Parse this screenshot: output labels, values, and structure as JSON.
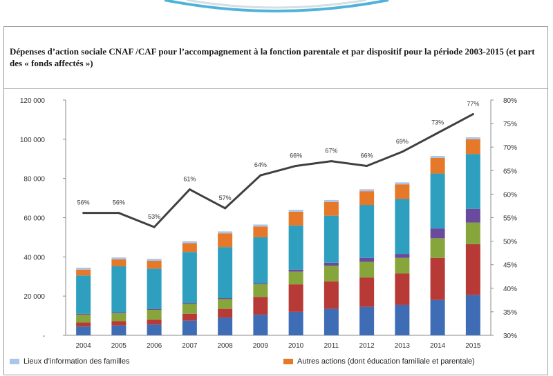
{
  "title": "Dépenses d’action sociale CNAF /CAF pour l’accompagnement à la fonction parentale et par dispositif pour la période 2003-2015 (et part des « fonds affectés »)",
  "colors": {
    "blue": "#3e6db5",
    "red": "#b83a37",
    "green": "#86a63b",
    "purple": "#6a4a9c",
    "teal": "#2f9fbf",
    "orange": "#e6782a",
    "lightblue": "#a9c6ea",
    "line": "#404040"
  },
  "chart_data": {
    "type": "bar",
    "stacked": true,
    "categories": [
      "2004",
      "2005",
      "2006",
      "2007",
      "2008",
      "2009",
      "2010",
      "2011",
      "2012",
      "2013",
      "2014",
      "2015"
    ],
    "series": [
      {
        "color_key": "blue",
        "values": [
          4500,
          5000,
          5500,
          7500,
          9000,
          10500,
          12000,
          13500,
          14500,
          15500,
          18000,
          20500
        ]
      },
      {
        "color_key": "red",
        "values": [
          2000,
          2200,
          2500,
          3500,
          4500,
          9000,
          14000,
          14000,
          15000,
          16000,
          21500,
          26000
        ]
      },
      {
        "color_key": "green",
        "values": [
          4000,
          4000,
          5000,
          5000,
          5000,
          6500,
          6500,
          8000,
          8000,
          8000,
          10000,
          11000
        ]
      },
      {
        "color_key": "purple",
        "values": [
          500,
          500,
          500,
          500,
          500,
          500,
          1000,
          1500,
          2000,
          2000,
          5000,
          7000
        ]
      },
      {
        "color_key": "teal",
        "values": [
          19500,
          23500,
          20500,
          26000,
          26000,
          23500,
          22500,
          24000,
          27000,
          28000,
          28000,
          28000
        ]
      },
      {
        "color_key": "orange",
        "values": [
          3000,
          3500,
          4000,
          4500,
          7000,
          5500,
          7000,
          7000,
          7000,
          7500,
          8000,
          7500
        ]
      },
      {
        "name": "Lieux d’information des familles",
        "color_key": "lightblue",
        "values": [
          1000,
          1000,
          1000,
          1000,
          1000,
          1000,
          1000,
          1000,
          1000,
          1000,
          1000,
          1000
        ]
      }
    ],
    "line": {
      "axis": "right",
      "values": [
        56,
        56,
        53,
        61,
        57,
        64,
        66,
        67,
        66,
        69,
        73,
        77
      ],
      "labels": [
        "56%",
        "56%",
        "53%",
        "61%",
        "57%",
        "64%",
        "66%",
        "67%",
        "66%",
        "69%",
        "73%",
        "77%"
      ]
    },
    "y_left": {
      "min": 0,
      "max": 120000,
      "step": 20000,
      "ticks": [
        "-",
        "20 000",
        "40 000",
        "60 000",
        "80 000",
        "100 000",
        "120 000"
      ]
    },
    "y_right": {
      "min": 30,
      "max": 80,
      "step": 5,
      "ticks": [
        "30%",
        "35%",
        "40%",
        "45%",
        "50%",
        "55%",
        "60%",
        "65%",
        "70%",
        "75%",
        "80%"
      ]
    },
    "grid": false,
    "legend": [
      {
        "label": "Lieux d’information des familles",
        "color_key": "lightblue"
      },
      {
        "label": "Autres actions (dont éducation familiale et parentale)",
        "color_key": "orange"
      }
    ],
    "legend_position": "bottom"
  }
}
